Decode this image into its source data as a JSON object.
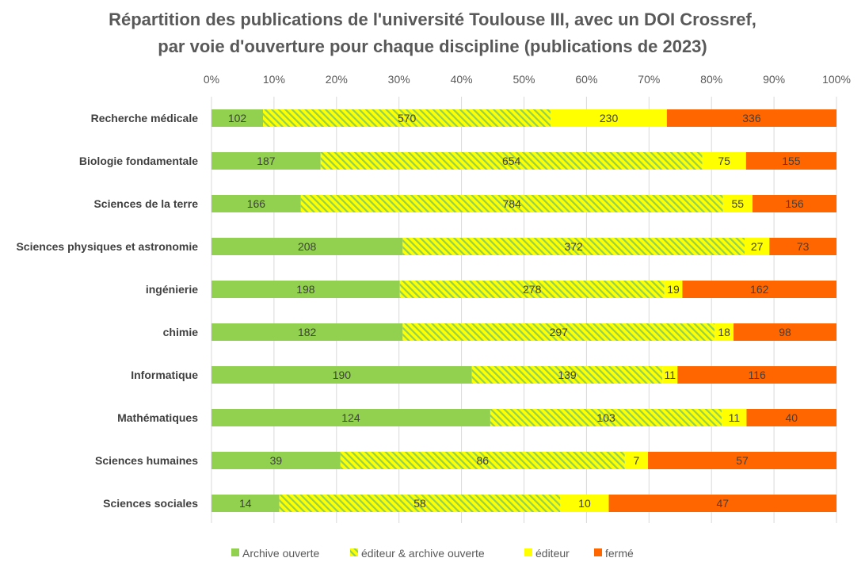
{
  "chart_data": {
    "type": "bar",
    "orientation": "horizontal",
    "stacked": "percent",
    "title": "Répartition des publications de l'université Toulouse III, avec un DOI Crossref,",
    "subtitle": "par voie d'ouverture pour chaque discipline (publications de 2023)",
    "x_ticks": [
      "0%",
      "10%",
      "20%",
      "30%",
      "40%",
      "50%",
      "60%",
      "70%",
      "80%",
      "90%",
      "100%"
    ],
    "xlim": [
      0,
      100
    ],
    "grid": true,
    "legend_position": "bottom",
    "categories": [
      "Recherche médicale",
      "Biologie fondamentale",
      "Sciences de la terre",
      "Sciences physiques et astronomie",
      "ingénierie",
      "chimie",
      "Informatique",
      "Mathématiques",
      "Sciences humaines",
      "Sciences sociales"
    ],
    "series": [
      {
        "name": "Archive ouverte",
        "color": "#92d050",
        "pattern": "solid",
        "values": [
          102,
          187,
          166,
          208,
          198,
          182,
          190,
          124,
          39,
          14
        ]
      },
      {
        "name": "éditeur & archive ouverte",
        "color": "#ffff00",
        "pattern": "hatched-green",
        "values": [
          570,
          654,
          784,
          372,
          278,
          297,
          139,
          103,
          86,
          58
        ]
      },
      {
        "name": "éditeur",
        "color": "#ffff00",
        "pattern": "solid",
        "values": [
          230,
          75,
          55,
          27,
          19,
          18,
          11,
          11,
          7,
          10
        ]
      },
      {
        "name": "fermé",
        "color": "#ff6600",
        "pattern": "solid",
        "values": [
          336,
          155,
          156,
          73,
          162,
          98,
          116,
          40,
          57,
          47
        ]
      }
    ]
  }
}
